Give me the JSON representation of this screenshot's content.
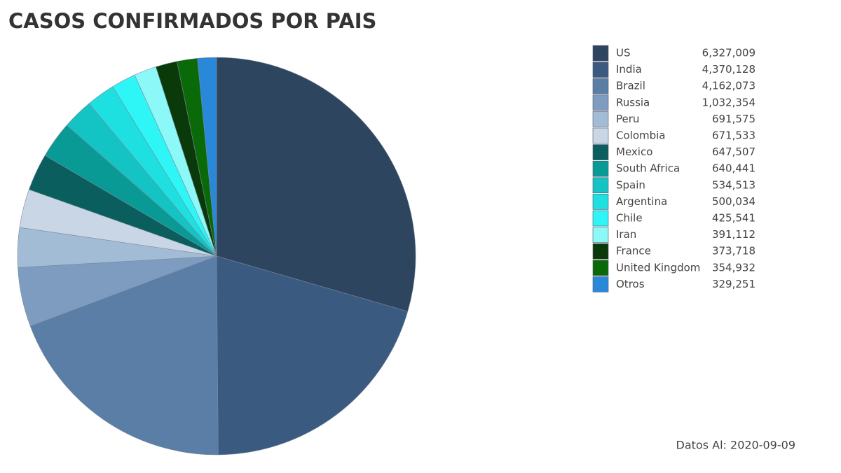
{
  "chart_data": {
    "type": "pie",
    "title": "CASOS CONFIRMADOS POR PAIS",
    "categories": [
      "US",
      "India",
      "Brazil",
      "Russia",
      "Peru",
      "Colombia",
      "Mexico",
      "South Africa",
      "Spain",
      "Argentina",
      "Chile",
      "Iran",
      "France",
      "United Kingdom",
      "Otros"
    ],
    "values": [
      6327009,
      4370128,
      4162073,
      1032354,
      691575,
      671533,
      647507,
      640441,
      534513,
      500034,
      425541,
      391112,
      373718,
      354932,
      329251
    ],
    "value_labels": [
      "6,327,009",
      "4,370,128",
      "4,162,073",
      "1,032,354",
      "691,575",
      "671,533",
      "647,507",
      "640,441",
      "534,513",
      "500,034",
      "425,541",
      "391,112",
      "373,718",
      "354,932",
      "329,251"
    ],
    "colors": [
      "#2e4560",
      "#3a5a80",
      "#5a7ea6",
      "#7d9cc0",
      "#a3bcd6",
      "#c8d6e6",
      "#0a5e5e",
      "#0a9a96",
      "#14c4c4",
      "#1ee0e0",
      "#2ef6f6",
      "#8cf8f8",
      "#0a3a0a",
      "#0a6a0a",
      "#2a88d8"
    ],
    "footnote": "Datos Al: 2020-09-09"
  }
}
